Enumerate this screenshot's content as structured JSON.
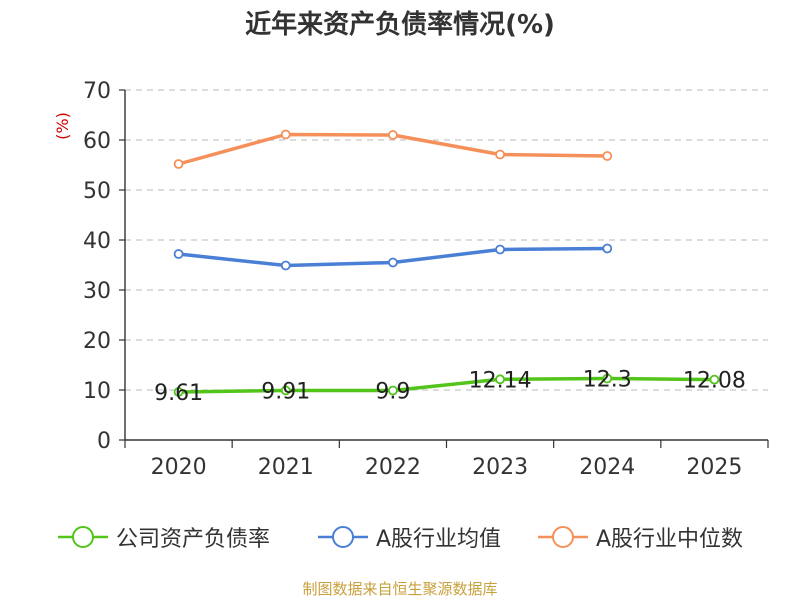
{
  "chart_data": {
    "type": "line",
    "title": "近年来资产负债率情况(%)",
    "ylabel": "(%)",
    "xlabel": "",
    "categories": [
      "2020",
      "2021",
      "2022",
      "2023",
      "2024",
      "2025"
    ],
    "ylim": [
      0,
      70
    ],
    "yticks": [
      0,
      10,
      20,
      30,
      40,
      50,
      60,
      70
    ],
    "grid": true,
    "legend_position": "bottom",
    "series": [
      {
        "name": "公司资产负债率",
        "color": "#52c41a",
        "values": [
          9.61,
          9.91,
          9.9,
          12.14,
          12.3,
          12.08
        ],
        "labels": [
          "9.61",
          "9.91",
          "9.9",
          "12.14",
          "12.3",
          "12.08"
        ]
      },
      {
        "name": "A股行业均值",
        "color": "#4a7fd6",
        "values": [
          37.2,
          34.9,
          35.5,
          38.1,
          38.3,
          null
        ],
        "labels": null
      },
      {
        "name": "A股行业中位数",
        "color": "#f5905a",
        "values": [
          55.2,
          61.1,
          61.0,
          57.1,
          56.8,
          null
        ],
        "labels": null
      }
    ]
  },
  "source_note": "制图数据来自恒生聚源数据库"
}
